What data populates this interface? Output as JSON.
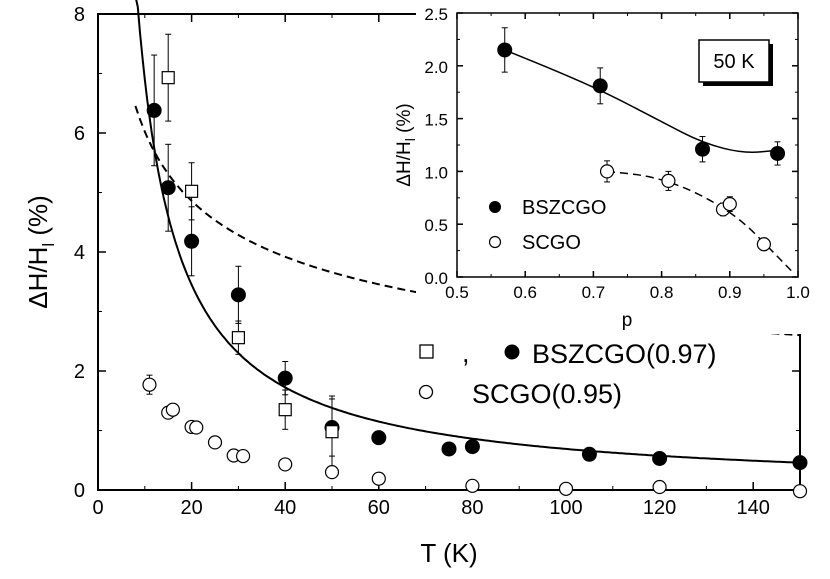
{
  "chart_data": [
    {
      "type": "scatter",
      "xlabel": "T (K)",
      "ylabel": "ΔH/H",
      "ylabel_sub": "l",
      "ylabel_unit": " (%)",
      "xlim": [
        0,
        150
      ],
      "ylim": [
        0,
        8
      ],
      "xticks": [
        "0",
        "20",
        "40",
        "60",
        "80",
        "100",
        "120",
        "140"
      ],
      "yticks": [
        "0",
        "2",
        "4",
        "6",
        "8"
      ],
      "legend": {
        "comma": ",",
        "bszcgo_label": "BSZCGO(0.97)",
        "scgo_label": "SCGO(0.95)"
      },
      "series": [
        {
          "name": "BSZCGO(0.97)",
          "marker": "filled-circle",
          "points": [
            {
              "x": 12,
              "y": 6.38,
              "err": 0.93
            },
            {
              "x": 15,
              "y": 5.08,
              "err": 0.73
            },
            {
              "x": 20,
              "y": 4.18,
              "err": 0.58
            },
            {
              "x": 30,
              "y": 3.28,
              "err": 0.48
            },
            {
              "x": 40,
              "y": 1.88,
              "err": 0.28
            },
            {
              "x": 50,
              "y": 1.05,
              "err": 0.48
            },
            {
              "x": 60,
              "y": 0.88,
              "err": 0.06
            },
            {
              "x": 75,
              "y": 0.69,
              "err": 0.05
            },
            {
              "x": 80,
              "y": 0.73,
              "err": 0.05
            },
            {
              "x": 105,
              "y": 0.6,
              "err": 0.04
            },
            {
              "x": 120,
              "y": 0.53,
              "err": 0.04
            },
            {
              "x": 150,
              "y": 0.46,
              "err": 0.03
            }
          ]
        },
        {
          "name": "BSZCGO(0.97)",
          "marker": "open-square",
          "points": [
            {
              "x": 15,
              "y": 6.93,
              "err": 0.73
            },
            {
              "x": 20,
              "y": 5.02,
              "err": 0.48
            },
            {
              "x": 30,
              "y": 2.56,
              "err": 0.28
            },
            {
              "x": 40,
              "y": 1.35,
              "err": 0.33
            },
            {
              "x": 50,
              "y": 0.98,
              "err": 0.6
            }
          ]
        },
        {
          "name": "SCGO(0.95)",
          "marker": "open-circle",
          "points": [
            {
              "x": 11,
              "y": 1.77,
              "err": 0.16
            },
            {
              "x": 15,
              "y": 1.3,
              "err": 0.1
            },
            {
              "x": 16,
              "y": 1.35,
              "err": 0.1
            },
            {
              "x": 20,
              "y": 1.06,
              "err": 0.08
            },
            {
              "x": 21,
              "y": 1.05,
              "err": 0.07
            },
            {
              "x": 25,
              "y": 0.8,
              "err": 0.05
            },
            {
              "x": 29,
              "y": 0.58,
              "err": 0.05
            },
            {
              "x": 31,
              "y": 0.57,
              "err": 0.05
            },
            {
              "x": 40,
              "y": 0.43,
              "err": 0.06
            },
            {
              "x": 50,
              "y": 0.3,
              "err": 0.07
            },
            {
              "x": 60,
              "y": 0.19,
              "err": 0.07
            },
            {
              "x": 80,
              "y": 0.07,
              "err": 0.08
            },
            {
              "x": 100,
              "y": 0.02,
              "err": 0.08
            },
            {
              "x": 120,
              "y": 0.05,
              "err": 0.08
            },
            {
              "x": 150,
              "y": -0.02,
              "err": 0.08
            }
          ]
        }
      ],
      "fits": [
        {
          "style": "solid",
          "a": 69.0,
          "b": -1.0
        },
        {
          "style": "dashed",
          "a": 12.3,
          "b": -0.31
        }
      ]
    },
    {
      "type": "scatter",
      "xlabel": "p",
      "ylabel": "ΔH/H",
      "ylabel_sub": "l",
      "ylabel_unit": " (%)",
      "xlim": [
        0.5,
        1.0
      ],
      "ylim": [
        0.0,
        2.5
      ],
      "xticks": [
        "0.5",
        "0.6",
        "0.7",
        "0.8",
        "0.9",
        "1.0"
      ],
      "yticks": [
        "0.0",
        "0.5",
        "1.0",
        "1.5",
        "2.0",
        "2.5"
      ],
      "annotation": "50 K",
      "legend": {
        "bszcgo_label": "BSZCGO",
        "scgo_label": "SCGO"
      },
      "series": [
        {
          "name": "BSZCGO",
          "marker": "filled-circle",
          "points": [
            {
              "x": 0.57,
              "y": 2.15,
              "err": 0.21
            },
            {
              "x": 0.71,
              "y": 1.81,
              "err": 0.17
            },
            {
              "x": 0.86,
              "y": 1.21,
              "err": 0.12
            },
            {
              "x": 0.97,
              "y": 1.17,
              "err": 0.11
            }
          ]
        },
        {
          "name": "SCGO",
          "marker": "open-circle",
          "points": [
            {
              "x": 0.72,
              "y": 1.0,
              "err": 0.1
            },
            {
              "x": 0.81,
              "y": 0.91,
              "err": 0.09
            },
            {
              "x": 0.89,
              "y": 0.64,
              "err": 0.06
            },
            {
              "x": 0.9,
              "y": 0.69,
              "err": 0.07
            },
            {
              "x": 0.95,
              "y": 0.31,
              "err": 0.06
            }
          ]
        }
      ],
      "fits": [
        {
          "style": "solid",
          "points": [
            [
              0.57,
              2.15
            ],
            [
              0.65,
              1.94
            ],
            [
              0.72,
              1.74
            ],
            [
              0.8,
              1.47
            ],
            [
              0.86,
              1.27
            ],
            [
              0.92,
              1.17
            ],
            [
              0.97,
              1.2
            ]
          ]
        },
        {
          "style": "dashed",
          "points": [
            [
              0.72,
              1.0
            ],
            [
              0.78,
              0.96
            ],
            [
              0.83,
              0.86
            ],
            [
              0.88,
              0.7
            ],
            [
              0.92,
              0.52
            ],
            [
              0.96,
              0.26
            ],
            [
              0.99,
              0.06
            ]
          ]
        }
      ]
    }
  ]
}
